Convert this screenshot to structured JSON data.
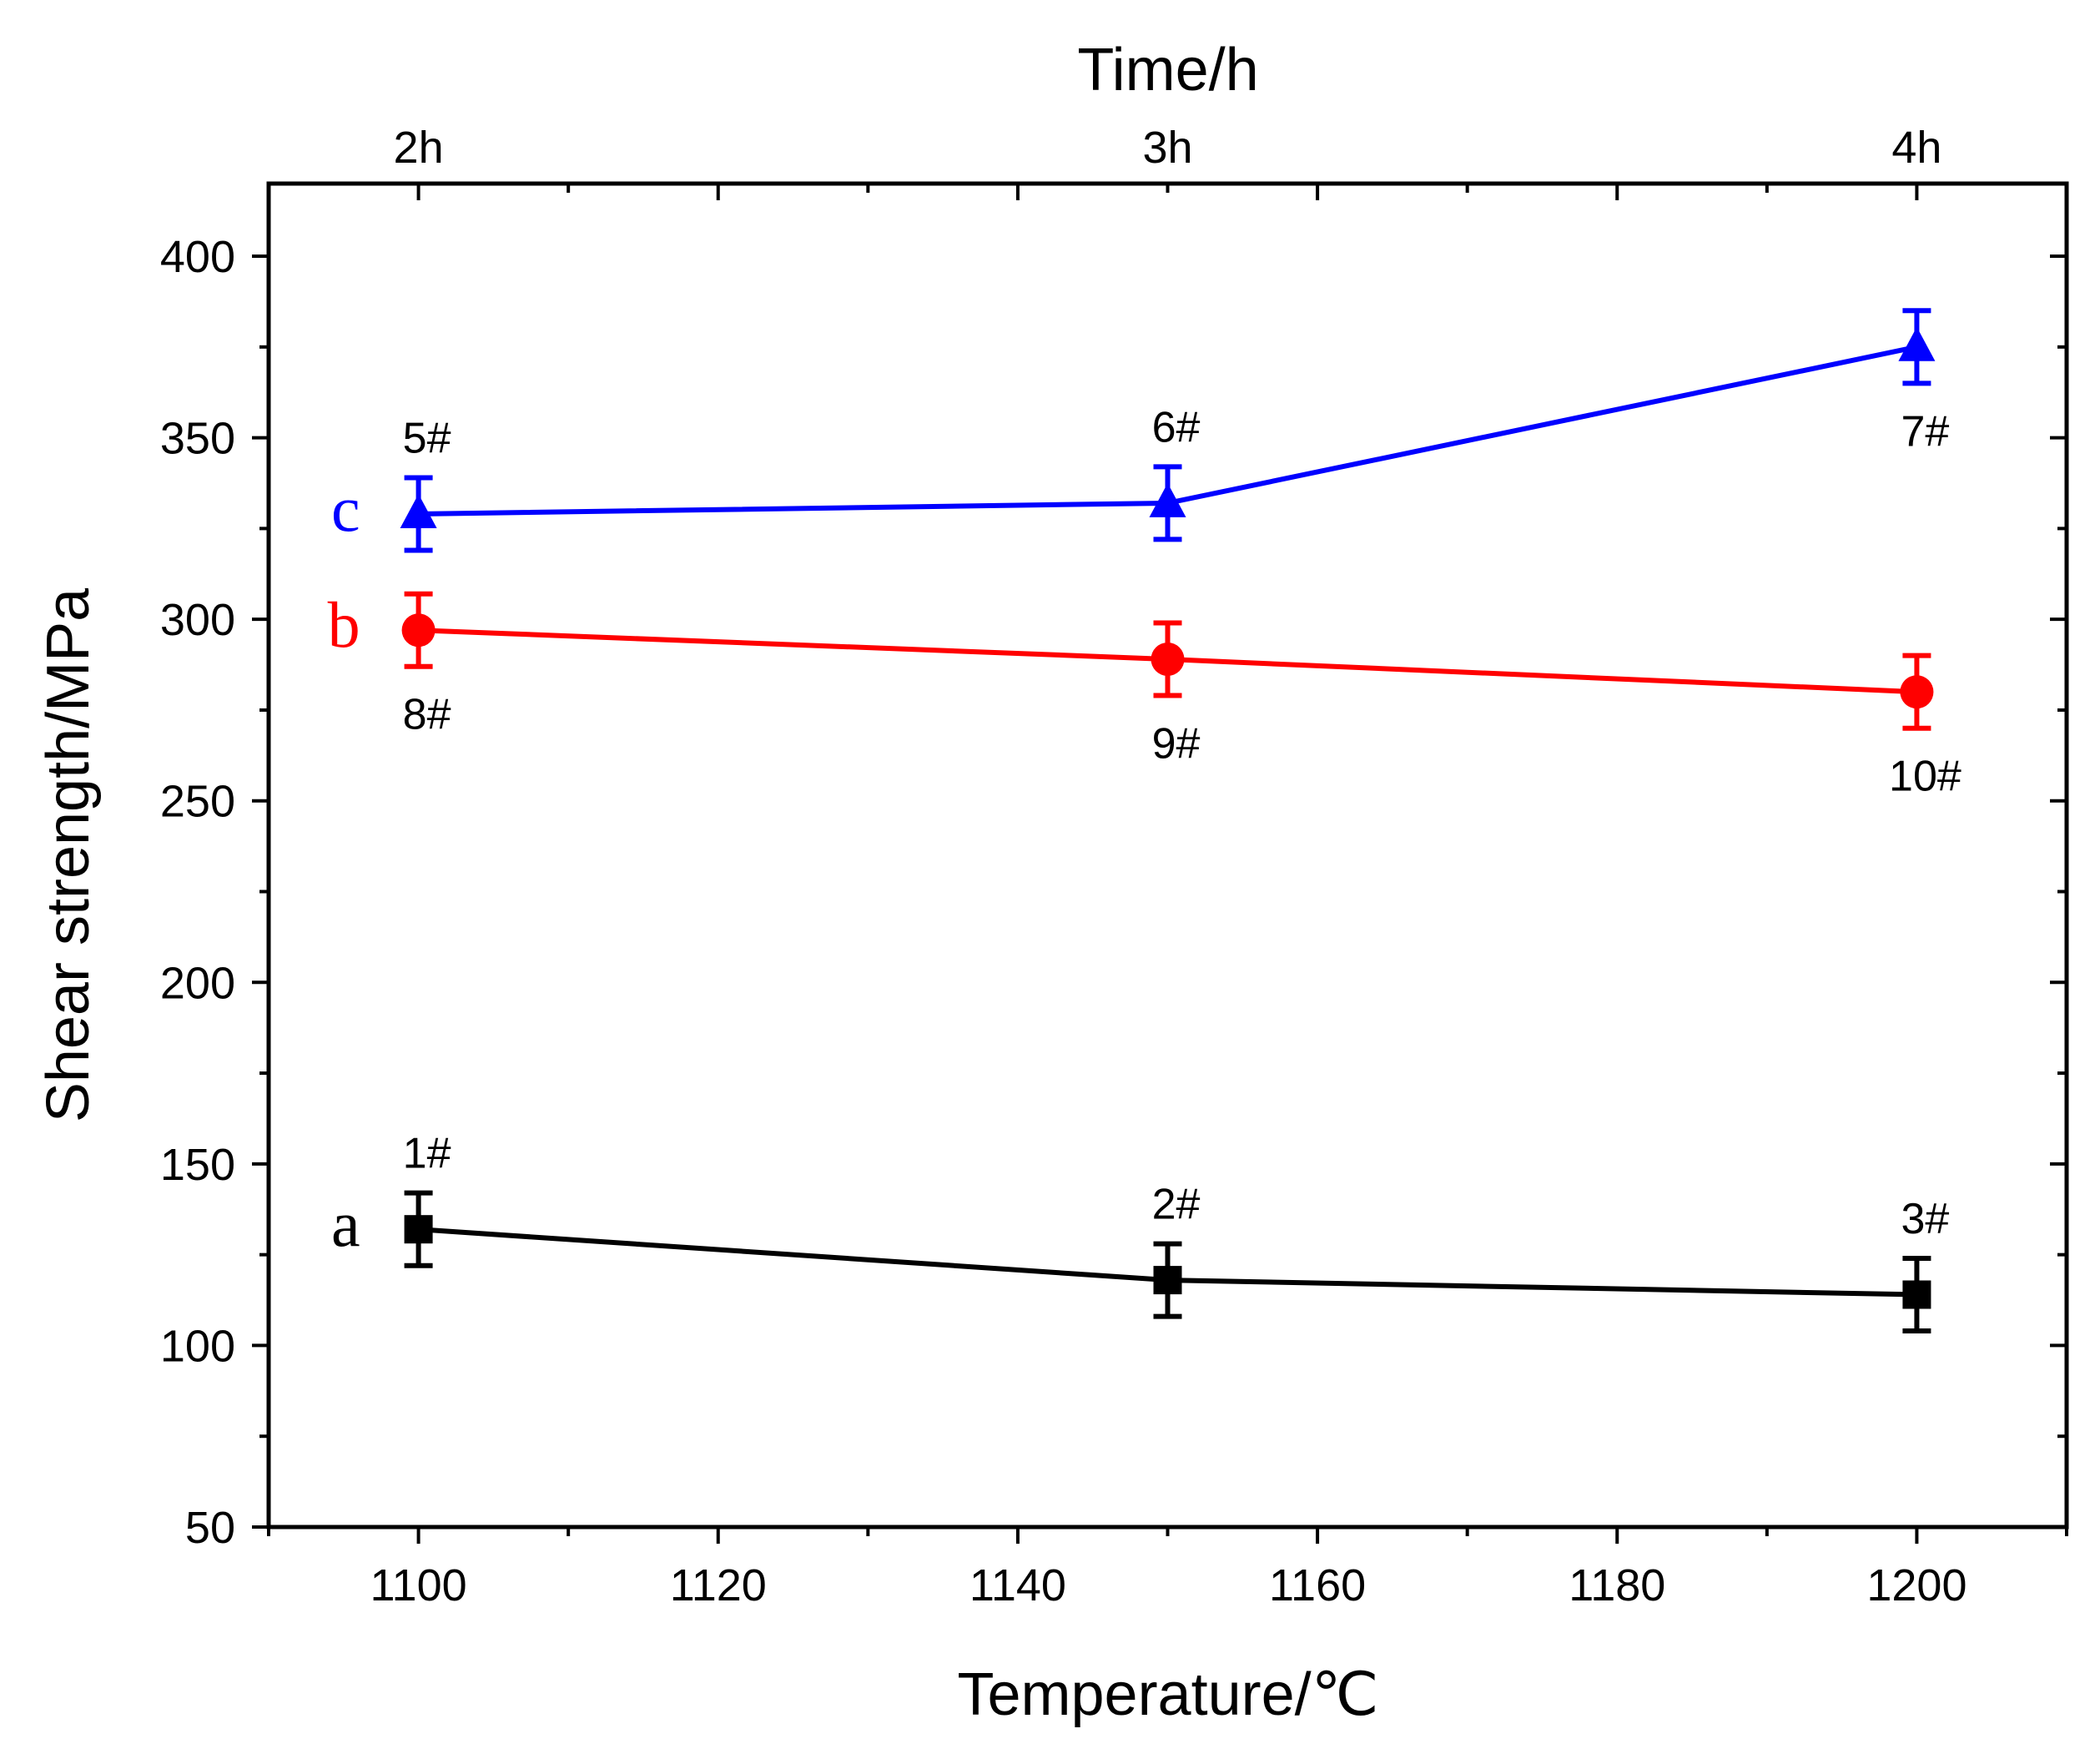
{
  "chart_data": {
    "type": "line",
    "title": "",
    "xlabel": "Temperature/℃",
    "ylabel": "Shear strength/MPa",
    "top_axis_label": "Time/h",
    "x": [
      1100,
      1150,
      1200
    ],
    "xlim": [
      1090,
      1210
    ],
    "ylim": [
      50,
      420
    ],
    "x_ticks": [
      1100,
      1120,
      1140,
      1160,
      1180,
      1200
    ],
    "y_ticks": [
      50,
      100,
      150,
      200,
      250,
      300,
      350,
      400
    ],
    "top_ticks": [
      {
        "x": 1100,
        "label": "2h"
      },
      {
        "x": 1150,
        "label": "3h"
      },
      {
        "x": 1200,
        "label": "4h"
      }
    ],
    "grid": false,
    "series": [
      {
        "name": "a",
        "color": "#000000",
        "marker": "square",
        "values": [
          132,
          118,
          114
        ],
        "errors": [
          10,
          10,
          10
        ],
        "point_labels": [
          "1#",
          "2#",
          "3#"
        ],
        "label_pos": [
          "above",
          "above",
          "above"
        ]
      },
      {
        "name": "b",
        "color": "#ff0000",
        "marker": "circle",
        "values": [
          297,
          289,
          280
        ],
        "errors": [
          10,
          10,
          10
        ],
        "point_labels": [
          "8#",
          "9#",
          "10#"
        ],
        "label_pos": [
          "below",
          "below",
          "below"
        ]
      },
      {
        "name": "c",
        "color": "#0000ff",
        "marker": "triangle",
        "values": [
          329,
          332,
          375
        ],
        "errors": [
          10,
          10,
          10
        ],
        "point_labels": [
          "5#",
          "6#",
          "7#"
        ],
        "label_pos": [
          "above",
          "above",
          "below"
        ]
      }
    ]
  }
}
